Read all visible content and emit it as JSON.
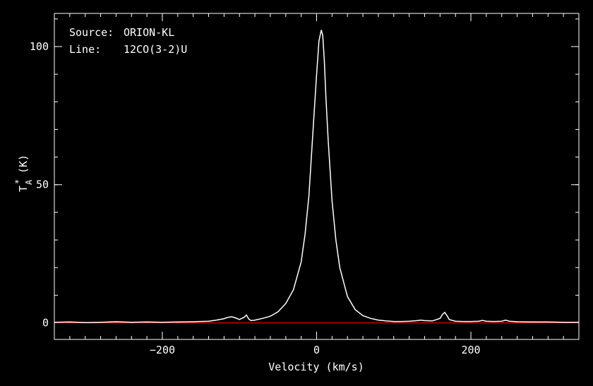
{
  "colors": {
    "background": "#000000",
    "foreground": "#ffffff",
    "baseline": "#ff0000"
  },
  "chart_data": {
    "type": "line",
    "annotations": [
      {
        "label": "Source:",
        "value": "ORION-KL"
      },
      {
        "label": "Line:",
        "value": "12CO(3-2)U"
      }
    ],
    "xlabel": "Velocity (km/s)",
    "ylabel": {
      "base": "T",
      "sup": "*",
      "sub": "A",
      "unit": "(K)"
    },
    "xlim": [
      -340,
      340
    ],
    "ylim": [
      -6,
      112
    ],
    "x_ticks": [
      {
        "value": -200,
        "label": "−200"
      },
      {
        "value": 0,
        "label": "0"
      },
      {
        "value": 200,
        "label": "200"
      }
    ],
    "y_ticks": [
      {
        "value": 0,
        "label": "0"
      },
      {
        "value": 50,
        "label": "50"
      },
      {
        "value": 100,
        "label": "100"
      }
    ],
    "x_minor_step": 20,
    "y_minor_step": 10,
    "baseline_y": 0,
    "series": [
      {
        "color": "#ffffff",
        "x": [
          -340,
          -320,
          -300,
          -280,
          -260,
          -240,
          -220,
          -200,
          -180,
          -160,
          -140,
          -130,
          -120,
          -115,
          -110,
          -105,
          -100,
          -97,
          -94,
          -91,
          -88,
          -85,
          -80,
          -70,
          -60,
          -50,
          -40,
          -30,
          -20,
          -15,
          -10,
          -5,
          0,
          3,
          6,
          8,
          10,
          12,
          15,
          20,
          25,
          30,
          40,
          50,
          60,
          70,
          80,
          90,
          100,
          110,
          120,
          130,
          135,
          140,
          150,
          160,
          163,
          166,
          169,
          172,
          180,
          190,
          200,
          210,
          215,
          220,
          230,
          240,
          245,
          250,
          260,
          280,
          300,
          320,
          340
        ],
        "y": [
          0.2,
          0.3,
          0.1,
          0.2,
          0.4,
          0.2,
          0.3,
          0.2,
          0.3,
          0.4,
          0.6,
          1.0,
          1.5,
          2.0,
          2.2,
          1.8,
          1.2,
          1.6,
          2.0,
          2.8,
          1.4,
          0.8,
          1.0,
          1.6,
          2.4,
          4.0,
          7.0,
          12.0,
          22.0,
          32.0,
          46.0,
          68.0,
          90.0,
          102.0,
          106.0,
          104.0,
          95.0,
          82.0,
          66.0,
          44.0,
          30.0,
          20.0,
          9.5,
          4.8,
          2.6,
          1.6,
          1.0,
          0.7,
          0.5,
          0.5,
          0.6,
          0.8,
          1.0,
          0.8,
          0.7,
          1.6,
          3.0,
          3.8,
          2.6,
          1.2,
          0.6,
          0.5,
          0.5,
          0.6,
          0.9,
          0.6,
          0.5,
          0.6,
          1.0,
          0.6,
          0.4,
          0.3,
          0.3,
          0.2,
          0.2
        ]
      }
    ],
    "grid": false
  }
}
